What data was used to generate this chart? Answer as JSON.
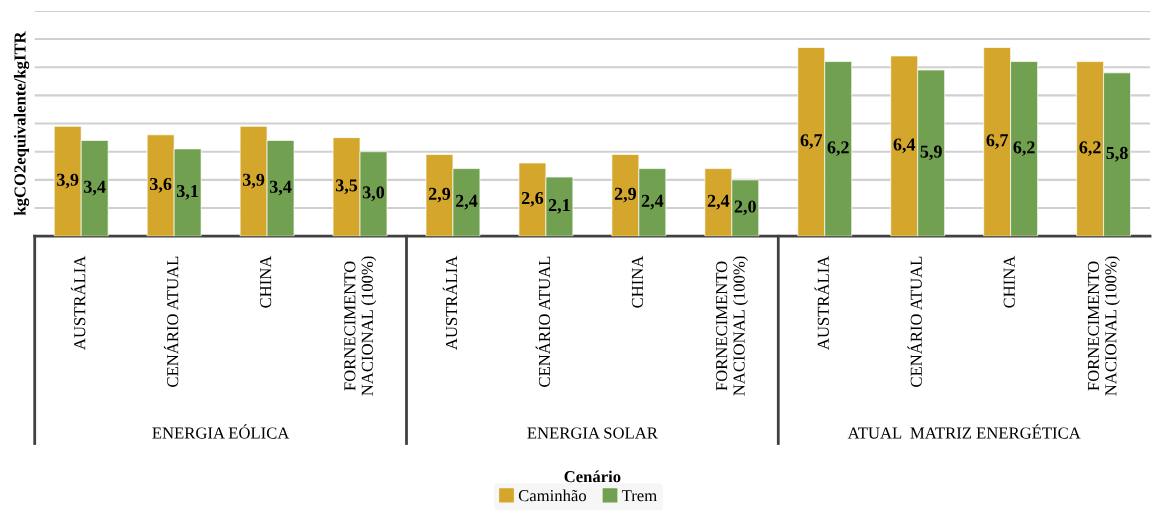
{
  "chart_data": {
    "type": "bar",
    "xlabel": "Cenário",
    "ylabel": "kgCO2equivalente/kgITR",
    "categories": [
      "AUSTRÁLIA",
      "CENÁRIO ATUAL",
      "CHINA",
      "FORNECIMENTO NACIONAL (100%)",
      "AUSTRÁLIA",
      "CENÁRIO ATUAL",
      "CHINA",
      "FORNECIMENTO NACIONAL (100%)",
      "AUSTRÁLIA",
      "CENÁRIO ATUAL",
      "CHINA",
      "FORNECIMENTO NACIONAL (100%)"
    ],
    "annotations": [
      "ENERGIA EÓLICA",
      "ENERGIA SOLAR",
      "ATUAL  MATRIZ ENERGÉTICA"
    ],
    "series": [
      {
        "name": "Caminhão",
        "color": "#d4a72c",
        "values": [
          3.9,
          3.6,
          3.9,
          3.5,
          2.9,
          2.6,
          2.9,
          2.4,
          6.7,
          6.4,
          6.7,
          6.2
        ],
        "value_labels": [
          "3,9",
          "3,6",
          "3,9",
          "3,5",
          "2,9",
          "2,6",
          "2,9",
          "2,4",
          "6,7",
          "6,4",
          "6,7",
          "6,2"
        ]
      },
      {
        "name": "Trem",
        "color": "#70a050",
        "values": [
          3.4,
          3.1,
          3.4,
          3.0,
          2.4,
          2.1,
          2.4,
          2.0,
          6.2,
          5.9,
          6.2,
          5.8
        ],
        "value_labels": [
          "3,4",
          "3,1",
          "3,4",
          "3,0",
          "2,4",
          "2,1",
          "2,4",
          "2,0",
          "6,2",
          "5,9",
          "6,2",
          "5,8"
        ]
      }
    ],
    "ylim": [
      0,
      8
    ],
    "yticks": [
      {
        "value": 0,
        "label": null
      },
      {
        "value": 1,
        "label": null
      },
      {
        "value": 2,
        "label": null
      },
      {
        "value": 3,
        "label": null
      },
      {
        "value": 4,
        "label": null
      },
      {
        "value": 5,
        "label": null
      },
      {
        "value": 6,
        "label": null
      },
      {
        "value": 7,
        "label": null
      },
      {
        "value": 8,
        "label": null
      }
    ],
    "grid": "y",
    "legend": "bottom",
    "tick_labels": "x"
  }
}
